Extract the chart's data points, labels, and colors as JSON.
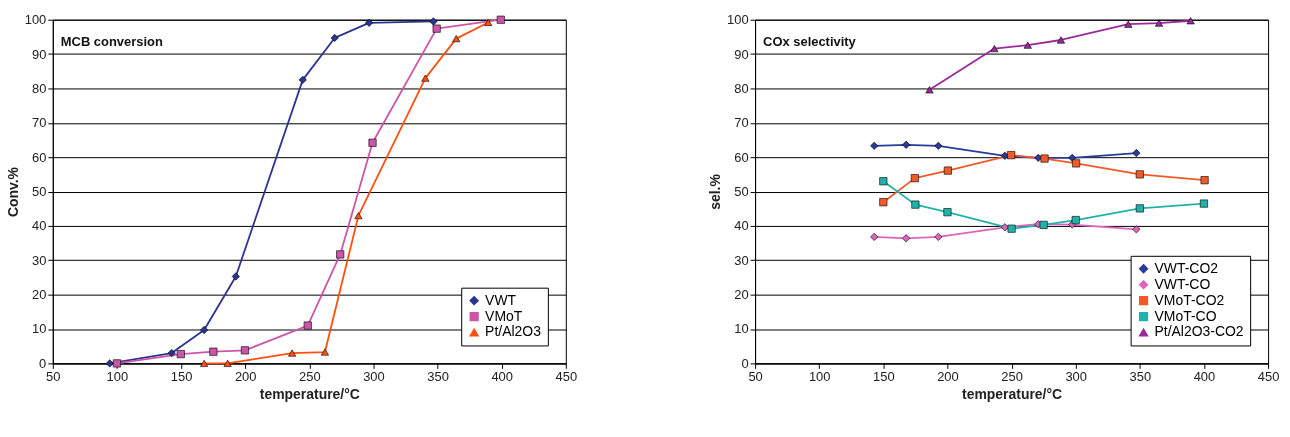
{
  "chart_data": [
    {
      "type": "line",
      "title": "MCB conversion",
      "xlabel": "temperature/°C",
      "ylabel": "Conv.%",
      "xlim": [
        50,
        450
      ],
      "xticks": [
        50,
        100,
        150,
        200,
        250,
        300,
        350,
        400,
        450
      ],
      "ylim": [
        0,
        100
      ],
      "yticks": [
        0,
        10,
        20,
        30,
        40,
        50,
        60,
        70,
        80,
        90,
        100
      ],
      "grid": "y",
      "legend": "bottom right",
      "line_style": "solid",
      "series": [
        {
          "name": "VWT",
          "color": "#2a3590",
          "marker": "diamond",
          "x": [
            94.4,
            142.7,
            168,
            192.7,
            244.9,
            269.8,
            296.6,
            346.8
          ],
          "values": [
            0,
            3.0,
            9.7,
            25.3,
            82.5,
            94.7,
            99.1,
            99.5
          ]
        },
        {
          "name": "VMoT",
          "color": "#cc55aa",
          "marker": "square",
          "x": [
            100,
            149.8,
            175.2,
            199.8,
            248.8,
            274.1,
            299.3,
            349.3,
            399.3
          ],
          "values": [
            0,
            2.7,
            3.4,
            3.8,
            11.0,
            31.7,
            64.2,
            97.4,
            100
          ]
        },
        {
          "name": "Pt/Al2O3",
          "color": "#ff5010",
          "marker": "triangle",
          "x": [
            168,
            186.3,
            236.6,
            262.2,
            288.3,
            340.5,
            364.6,
            389.5
          ],
          "values": [
            0,
            0,
            3.0,
            3.3,
            43.0,
            83.0,
            94.5,
            99.2
          ]
        }
      ]
    },
    {
      "type": "line",
      "title": "COx selectivity",
      "xlabel": "temperature/°C",
      "ylabel": "sel.%",
      "xlim": [
        50,
        450
      ],
      "xticks": [
        50,
        100,
        150,
        200,
        250,
        300,
        350,
        400,
        450
      ],
      "ylim": [
        0,
        100
      ],
      "yticks": [
        0,
        10,
        20,
        30,
        40,
        50,
        60,
        70,
        80,
        90,
        100
      ],
      "grid": "y",
      "legend": "bottom right",
      "line_style": "solid",
      "series": [
        {
          "name": "VWT-CO2",
          "color": "#2a3a9a",
          "marker": "diamond",
          "x": [
            142.9,
            167.8,
            192.9,
            244.8,
            270.8,
            297.3,
            347.3
          ],
          "values": [
            63.3,
            63.6,
            63.3,
            60.4,
            59.8,
            59.8,
            61.2
          ]
        },
        {
          "name": "VWT-CO",
          "color": "#dd66bb",
          "marker": "diamond",
          "x": [
            142.9,
            167.8,
            192.9,
            244.8,
            270.8,
            297.3,
            347.3
          ],
          "values": [
            36.8,
            36.4,
            36.8,
            39.6,
            40.5,
            40.4,
            39.0
          ]
        },
        {
          "name": "VMoT-CO2",
          "color": "#f05a28",
          "marker": "square",
          "x": [
            150,
            174.6,
            200.3,
            249.7,
            275.7,
            300.3,
            350,
            400.5
          ],
          "values": [
            46.9,
            53.9,
            56.1,
            60.6,
            59.6,
            58.2,
            55.0,
            53.3
          ]
        },
        {
          "name": "VMoT-CO",
          "color": "#20b2aa",
          "marker": "square",
          "x": [
            150,
            175,
            200,
            250,
            275,
            300,
            350,
            400
          ],
          "values": [
            53.0,
            46.2,
            44.0,
            39.2,
            40.3,
            41.7,
            45.1,
            46.5
          ]
        },
        {
          "name": "Pt/Al2O3-CO2",
          "color": "#9b2a9b",
          "marker": "triangle",
          "x": [
            186,
            236.6,
            262.6,
            288.5,
            341,
            365,
            389.6
          ],
          "values": [
            79.6,
            91.6,
            92.6,
            94.1,
            98.7,
            99.0,
            99.7
          ]
        }
      ]
    }
  ]
}
